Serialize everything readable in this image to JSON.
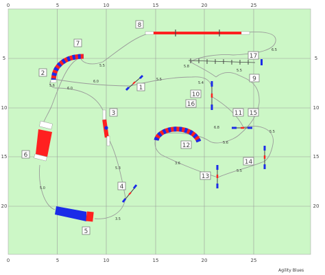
{
  "app": {
    "brand": "Agility Blues"
  },
  "arena": {
    "width_m": 31,
    "height_m": 26,
    "field_color": "#ccf7c6",
    "grid_color": "#9a9a9a",
    "path_color": "#9a9a9a",
    "x_ticks": [
      "0",
      "5",
      "10",
      "15",
      "20",
      "25"
    ],
    "y_ticks": [
      "5",
      "10",
      "15",
      "20"
    ]
  },
  "colors": {
    "red": "#ff2020",
    "blue": "#1b2be8",
    "white": "#ffffff",
    "pole": "#444444"
  },
  "obstacles": [
    {
      "num": "1",
      "type": "jump"
    },
    {
      "num": "2",
      "type": "tunnel-curve"
    },
    {
      "num": "3",
      "type": "seesaw"
    },
    {
      "num": "4",
      "type": "jump"
    },
    {
      "num": "5",
      "type": "tunnel-fan"
    },
    {
      "num": "6",
      "type": "tunnel-straight"
    },
    {
      "num": "7",
      "type": "tunnel-curve"
    },
    {
      "num": "8",
      "type": "dogwalk"
    },
    {
      "num": "9",
      "type": "weave"
    },
    {
      "num": "10",
      "type": "jump"
    },
    {
      "num": "11",
      "type": "jump"
    },
    {
      "num": "12",
      "type": "tunnel-curve"
    },
    {
      "num": "13",
      "type": "jump"
    },
    {
      "num": "14",
      "type": "jump"
    },
    {
      "num": "15",
      "type": "jump"
    },
    {
      "num": "16",
      "type": "jump"
    },
    {
      "num": "17",
      "type": "weave"
    }
  ],
  "distances": [
    "6.0",
    "5.5",
    "5.5",
    "6.5",
    "5.5",
    "6.8",
    "5.6",
    "5.5",
    "3.6",
    "5.5",
    "5.3",
    "3.5",
    "5.0",
    "6.0",
    "5.8",
    "5.4",
    "5.6",
    "5.5"
  ]
}
